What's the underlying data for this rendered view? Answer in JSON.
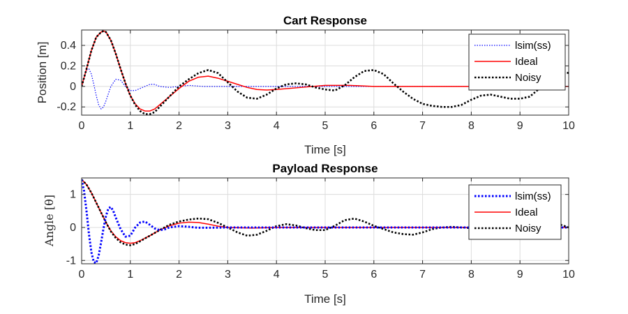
{
  "chart_data": [
    {
      "type": "line",
      "title": "Cart Response",
      "xlabel": "Time [s]",
      "ylabel": "Position [m]",
      "xlim": [
        0,
        10
      ],
      "ylim": [
        -0.28,
        0.55
      ],
      "xticks": [
        0,
        1,
        2,
        3,
        4,
        5,
        6,
        7,
        8,
        9,
        10
      ],
      "yticks": [
        -0.2,
        0,
        0.2,
        0.4
      ],
      "grid": true,
      "legend_position": "top-right",
      "series": [
        {
          "name": "lsim(ss)",
          "color": "#0000ff",
          "style": "dotted",
          "width": 1.2,
          "x": [
            0,
            0.05,
            0.1,
            0.15,
            0.2,
            0.25,
            0.3,
            0.35,
            0.4,
            0.45,
            0.5,
            0.55,
            0.6,
            0.7,
            0.8,
            0.9,
            1.0,
            1.1,
            1.2,
            1.3,
            1.4,
            1.5,
            1.6,
            1.8,
            2.0,
            2.2,
            2.5,
            3.0,
            4.0,
            5.0,
            6.0,
            7.0,
            8.0,
            9.0,
            10.0
          ],
          "y": [
            0,
            0.09,
            0.16,
            0.17,
            0.12,
            0.02,
            -0.09,
            -0.18,
            -0.22,
            -0.2,
            -0.14,
            -0.07,
            0.0,
            0.07,
            0.06,
            0.0,
            -0.04,
            -0.04,
            -0.02,
            0.0,
            0.02,
            0.02,
            0.0,
            -0.01,
            0.0,
            0.01,
            0.0,
            0.0,
            0.0,
            0.0,
            0.0,
            0.0,
            0.0,
            0.0,
            0.0
          ]
        },
        {
          "name": "Ideal",
          "color": "#ff0000",
          "style": "solid",
          "width": 1.5,
          "x": [
            0,
            0.1,
            0.2,
            0.3,
            0.4,
            0.45,
            0.5,
            0.6,
            0.7,
            0.8,
            0.9,
            1.0,
            1.1,
            1.2,
            1.3,
            1.4,
            1.5,
            1.6,
            1.8,
            2.0,
            2.2,
            2.4,
            2.6,
            2.8,
            3.0,
            3.2,
            3.4,
            3.6,
            3.8,
            4.0,
            4.5,
            5.0,
            5.5,
            6.0,
            7.0,
            8.0,
            9.0,
            10.0
          ],
          "y": [
            0,
            0.17,
            0.35,
            0.48,
            0.53,
            0.54,
            0.53,
            0.45,
            0.32,
            0.17,
            0.03,
            -0.09,
            -0.17,
            -0.22,
            -0.24,
            -0.24,
            -0.22,
            -0.18,
            -0.1,
            -0.02,
            0.05,
            0.09,
            0.1,
            0.08,
            0.05,
            0.02,
            -0.01,
            -0.03,
            -0.035,
            -0.03,
            -0.01,
            0.01,
            0.01,
            0.0,
            0.0,
            0.0,
            0.0,
            0.0
          ]
        },
        {
          "name": "Noisy",
          "color": "#000000",
          "style": "dotted",
          "width": 2.6,
          "x": [
            0,
            0.1,
            0.2,
            0.3,
            0.4,
            0.45,
            0.5,
            0.6,
            0.7,
            0.8,
            0.9,
            1.0,
            1.1,
            1.2,
            1.3,
            1.4,
            1.5,
            1.6,
            1.8,
            2.0,
            2.2,
            2.4,
            2.6,
            2.8,
            3.0,
            3.2,
            3.4,
            3.6,
            3.8,
            4.0,
            4.2,
            4.4,
            4.6,
            4.8,
            5.0,
            5.2,
            5.4,
            5.6,
            5.8,
            6.0,
            6.2,
            6.4,
            6.6,
            6.8,
            7.0,
            7.2,
            7.4,
            7.6,
            7.8,
            8.0,
            8.2,
            8.4,
            8.6,
            8.8,
            9.0,
            9.2,
            9.4,
            9.6,
            9.8,
            10.0
          ],
          "y": [
            0,
            0.17,
            0.35,
            0.48,
            0.53,
            0.54,
            0.53,
            0.45,
            0.32,
            0.17,
            0.03,
            -0.09,
            -0.18,
            -0.24,
            -0.27,
            -0.27,
            -0.25,
            -0.2,
            -0.1,
            0.0,
            0.07,
            0.13,
            0.16,
            0.13,
            0.04,
            -0.05,
            -0.11,
            -0.12,
            -0.08,
            -0.02,
            0.02,
            0.03,
            0.02,
            -0.01,
            -0.03,
            -0.04,
            0.01,
            0.09,
            0.15,
            0.16,
            0.12,
            0.03,
            -0.05,
            -0.12,
            -0.17,
            -0.19,
            -0.2,
            -0.2,
            -0.18,
            -0.13,
            -0.09,
            -0.08,
            -0.1,
            -0.12,
            -0.12,
            -0.1,
            -0.02,
            0.08,
            0.15,
            0.13
          ]
        }
      ]
    },
    {
      "type": "line",
      "title": "Payload Response",
      "xlabel": "Time [s]",
      "ylabel": "Angle [θ]",
      "xlim": [
        0,
        10
      ],
      "ylim": [
        -1.1,
        1.5
      ],
      "xticks": [
        0,
        1,
        2,
        3,
        4,
        5,
        6,
        7,
        8,
        9,
        10
      ],
      "yticks": [
        -1,
        0,
        1
      ],
      "grid": true,
      "legend_position": "top-right",
      "series": [
        {
          "name": "lsim(ss)",
          "color": "#0000ff",
          "style": "dotted",
          "width": 3,
          "x": [
            0,
            0.05,
            0.1,
            0.15,
            0.2,
            0.25,
            0.3,
            0.35,
            0.4,
            0.45,
            0.5,
            0.55,
            0.6,
            0.65,
            0.7,
            0.8,
            0.9,
            1.0,
            1.1,
            1.2,
            1.3,
            1.4,
            1.5,
            1.6,
            1.7,
            1.8,
            2.0,
            2.2,
            2.4,
            2.6,
            3.0,
            4.0,
            5.0,
            6.0,
            7.0,
            8.0,
            9.0,
            10.0
          ],
          "y": [
            1.45,
            1.1,
            0.5,
            -0.2,
            -0.75,
            -1.05,
            -1.08,
            -0.85,
            -0.45,
            -0.02,
            0.35,
            0.58,
            0.62,
            0.5,
            0.3,
            -0.05,
            -0.28,
            -0.25,
            0.0,
            0.15,
            0.18,
            0.08,
            -0.03,
            -0.08,
            -0.06,
            0.0,
            0.04,
            0.02,
            -0.01,
            -0.01,
            0.0,
            0.0,
            0.0,
            0.0,
            0.0,
            0.0,
            0.0,
            0.0
          ]
        },
        {
          "name": "Ideal",
          "color": "#ff0000",
          "style": "solid",
          "width": 1.5,
          "x": [
            0,
            0.1,
            0.2,
            0.3,
            0.4,
            0.5,
            0.6,
            0.7,
            0.8,
            0.9,
            1.0,
            1.1,
            1.2,
            1.4,
            1.6,
            1.8,
            2.0,
            2.2,
            2.4,
            2.6,
            2.8,
            3.0,
            3.5,
            4.0,
            5.0,
            6.0,
            7.0,
            8.0,
            9.0,
            10.0
          ],
          "y": [
            1.45,
            1.3,
            1.05,
            0.75,
            0.45,
            0.15,
            -0.1,
            -0.28,
            -0.4,
            -0.46,
            -0.48,
            -0.46,
            -0.4,
            -0.25,
            -0.08,
            0.05,
            0.13,
            0.16,
            0.15,
            0.1,
            0.04,
            0.0,
            -0.02,
            0.0,
            0.0,
            0.0,
            0.0,
            0.0,
            0.0,
            0.0
          ]
        },
        {
          "name": "Noisy",
          "color": "#000000",
          "style": "dotted",
          "width": 2.6,
          "x": [
            0,
            0.1,
            0.2,
            0.3,
            0.4,
            0.5,
            0.6,
            0.7,
            0.8,
            0.9,
            1.0,
            1.1,
            1.2,
            1.4,
            1.6,
            1.8,
            2.0,
            2.2,
            2.4,
            2.6,
            2.8,
            3.0,
            3.2,
            3.4,
            3.6,
            3.8,
            4.0,
            4.2,
            4.4,
            4.6,
            4.8,
            5.0,
            5.2,
            5.4,
            5.6,
            5.8,
            6.0,
            6.2,
            6.4,
            6.6,
            6.8,
            7.0,
            7.2,
            7.4,
            7.6,
            7.8,
            8.0,
            8.2,
            8.4,
            8.6,
            8.8,
            9.0,
            9.2,
            9.4,
            9.6,
            9.8,
            10.0
          ],
          "y": [
            1.45,
            1.3,
            1.05,
            0.75,
            0.45,
            0.15,
            -0.12,
            -0.32,
            -0.45,
            -0.52,
            -0.54,
            -0.5,
            -0.42,
            -0.25,
            -0.08,
            0.08,
            0.18,
            0.24,
            0.27,
            0.25,
            0.14,
            0.0,
            -0.15,
            -0.25,
            -0.22,
            -0.1,
            0.04,
            0.1,
            0.06,
            -0.02,
            -0.08,
            -0.08,
            0.05,
            0.22,
            0.27,
            0.18,
            0.05,
            -0.05,
            -0.15,
            -0.2,
            -0.22,
            -0.15,
            -0.05,
            0.0,
            0.02,
            0.0,
            -0.02,
            0.0,
            0.02,
            0.03,
            0.05,
            0.06,
            0.05,
            0.02,
            0.03,
            0.1,
            0.0
          ]
        }
      ]
    }
  ]
}
